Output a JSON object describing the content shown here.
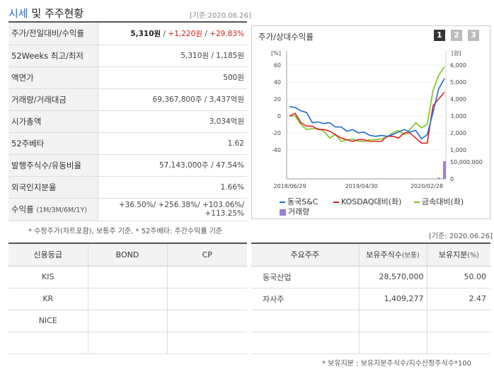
{
  "header": {
    "title_blue": "시세",
    "title_rest": " 및 주주현황",
    "base_date": "[기준:2020.06.26]"
  },
  "info_rows": [
    {
      "label": "주가/전일대비/수익률",
      "price": "5,310원",
      "sep1": " / ",
      "change": "+1,220원",
      "sep2": " / ",
      "rate": "+29.83%"
    },
    {
      "label": "52Weeks 최고/최저",
      "value": "5,310원 / 1,185원"
    },
    {
      "label": "액면가",
      "value": "500원"
    },
    {
      "label": "거래량/거래대금",
      "value": "69,367,800주 / 3,437억원"
    },
    {
      "label": "시가총액",
      "value": "3,034억원"
    },
    {
      "label": "52주베타",
      "value": "1.62"
    },
    {
      "label": "발행주식수/유동비율",
      "value": "57,143,000주 / 47.54%"
    },
    {
      "label": "외국인지분율",
      "value": "1.66%"
    },
    {
      "label": "수익률",
      "label_sub": "(1M/3M/6M/1Y)",
      "line1": "+36.50%/ +256.38%/ +103.06%/",
      "line2": "+113.25%"
    }
  ],
  "note1": "* 수정주가(차트포함), 보통주 기준, * 52주베타: 주간수익률 기준",
  "chart_panel": {
    "title": "주가/상대수익률",
    "pages": [
      "1",
      "2",
      "3"
    ],
    "legend": [
      {
        "label": "동국S&C",
        "color": "#1f6bd0"
      },
      {
        "label": "KOSDAQ대비(좌)",
        "color": "#e02020"
      },
      {
        "label": "금속대비(좌)",
        "color": "#7cc21a"
      },
      {
        "label": "거래량",
        "color": "#9b7fd4"
      }
    ]
  },
  "chart_data": {
    "type": "line",
    "left_unit": "[%]",
    "right_unit": "[원]",
    "left_ticks": [
      "60",
      "40",
      "20",
      "0",
      "-20",
      "-40"
    ],
    "right_ticks": [
      "6,000",
      "5,000",
      "4,000",
      "3,000",
      "2,000",
      "1,000"
    ],
    "volume_ticks": [
      "50,000,000",
      "0"
    ],
    "x_ticks": [
      "2018/06/29",
      "2019/04/30",
      "2020/02/28"
    ],
    "ylim_left": [
      -40,
      60
    ],
    "ylim_right": [
      1000,
      6000
    ],
    "series": [
      {
        "name": "동국S&C",
        "axis": "right",
        "values": [
          3550,
          3500,
          3300,
          3200,
          2600,
          2650,
          2550,
          2600,
          2350,
          2350,
          2100,
          2200,
          2000,
          2050,
          1850,
          1800,
          1850,
          1800,
          1900,
          2050,
          2200,
          2050,
          2150,
          1650,
          1900,
          3200,
          4600,
          5200
        ]
      },
      {
        "name": "KOSDAQ대비(좌)",
        "axis": "left",
        "values": [
          0,
          3,
          -8,
          -12,
          -12,
          -16,
          -16,
          -18,
          -22,
          -26,
          -28,
          -30,
          -28,
          -28,
          -30,
          -30,
          -30,
          -24,
          -24,
          -26,
          -20,
          -20,
          -26,
          -32,
          -32,
          12,
          20,
          28
        ]
      },
      {
        "name": "금속대비(좌)",
        "axis": "left",
        "values": [
          0,
          0,
          -10,
          -16,
          -15,
          -15,
          -18,
          -26,
          -22,
          -30,
          -28,
          -27,
          -30,
          -30,
          -28,
          -28,
          -27,
          -25,
          -20,
          -17,
          -22,
          -16,
          -8,
          -14,
          -10,
          30,
          48,
          58
        ]
      }
    ],
    "volume": [
      0,
      0,
      0,
      0,
      0,
      0,
      0,
      0,
      0,
      0,
      0,
      0,
      0,
      0,
      0,
      0,
      0,
      0,
      0,
      0,
      0,
      0,
      0,
      0,
      0,
      0,
      3,
      50
    ]
  },
  "note2": "[기준: 2020.06.26]",
  "credit_table": {
    "headers": [
      "신용등급",
      "BOND",
      "CP"
    ],
    "rows": [
      [
        "KIS",
        "",
        ""
      ],
      [
        "KR",
        "",
        ""
      ],
      [
        "NICE",
        "",
        ""
      ],
      [
        "",
        "",
        ""
      ]
    ]
  },
  "holder_table": {
    "headers": [
      "주요주주",
      "보유주식수",
      "(보통)",
      "보유지분",
      "(%)"
    ],
    "rows": [
      [
        "동국산업",
        "28,570,000",
        "50.00"
      ],
      [
        "자사주",
        "1,409,277",
        "2.47"
      ],
      [
        "",
        "",
        ""
      ],
      [
        "",
        "",
        ""
      ]
    ]
  },
  "note3": "* 보유지분 : 보유지분주식수/지수산정주식수*100"
}
